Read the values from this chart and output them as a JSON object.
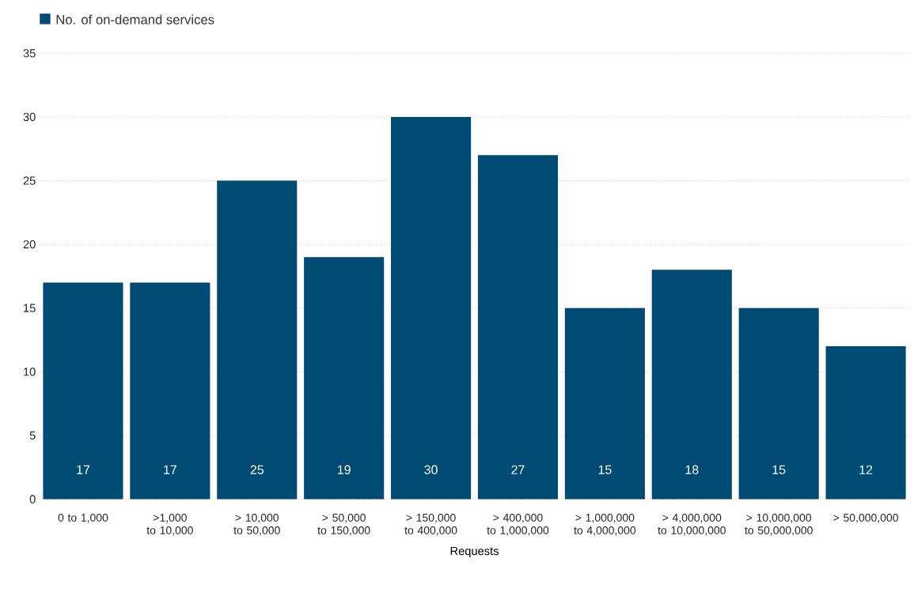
{
  "chart_data": {
    "type": "bar",
    "categories": [
      "0 to 1,000",
      ">1,000 to 10,000",
      "> 10,000 to 50,000",
      "> 50,000 to 150,000",
      "> 150,000 to 400,000",
      "> 400,000 to 1,000,000",
      "> 1,000,000 to 4,000,000",
      "> 4,000,000 to 10,000,000",
      "> 10,000,000 to 50,000,000",
      ">  50,000,000"
    ],
    "series": [
      {
        "name": "No. of on-demand services",
        "color": "#004b73",
        "values": [
          17,
          17,
          25,
          19,
          30,
          27,
          15,
          18,
          15,
          12
        ]
      }
    ],
    "xlabel": "Requests",
    "ylim": [
      0,
      35
    ],
    "yticks": [
      0,
      5,
      10,
      15,
      20,
      25,
      30,
      35
    ],
    "grid": "y",
    "legend": "top left",
    "data_labels": true
  }
}
